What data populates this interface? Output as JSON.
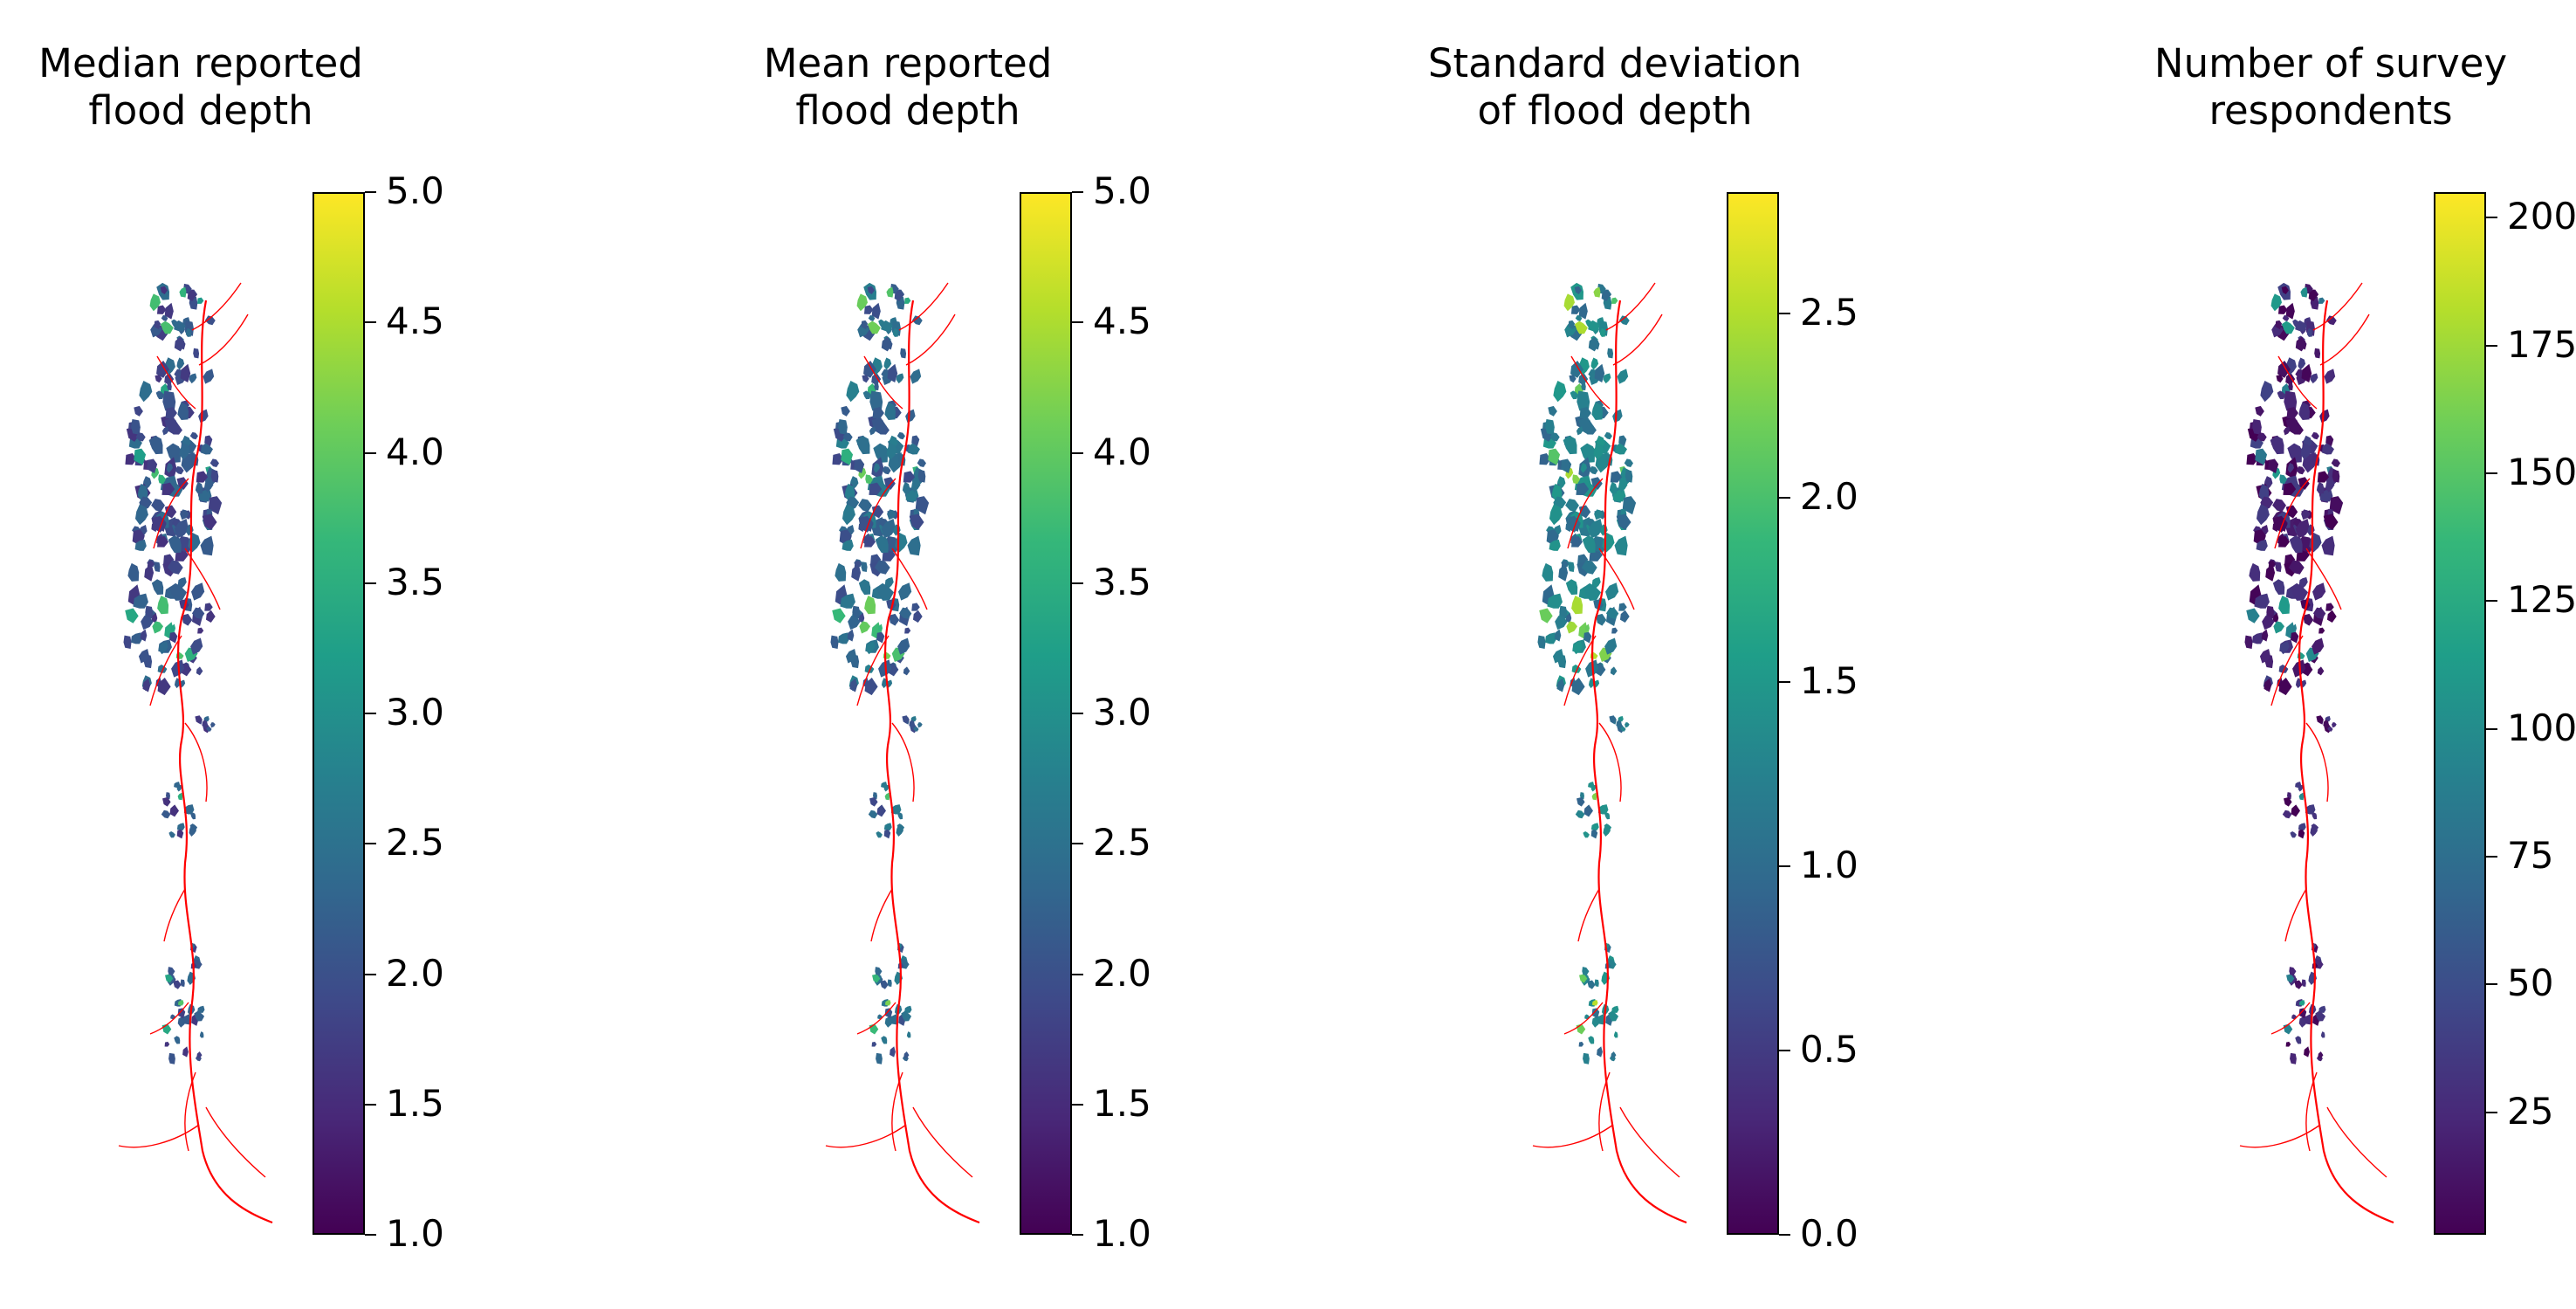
{
  "figure": {
    "river_color": "#ff0000",
    "colormap": "viridis",
    "colormap_stops": [
      "#440154",
      "#482878",
      "#3e4989",
      "#31688e",
      "#26828e",
      "#1f9e89",
      "#35b779",
      "#6ece58",
      "#b5de2b",
      "#fde725"
    ]
  },
  "panels": [
    {
      "title": "Median reported\nflood depth",
      "colorbar": {
        "min": 1.0,
        "max": 5.0,
        "ticks": [
          {
            "value": 1.0,
            "label": "1.0"
          },
          {
            "value": 1.5,
            "label": "1.5"
          },
          {
            "value": 2.0,
            "label": "2.0"
          },
          {
            "value": 2.5,
            "label": "2.5"
          },
          {
            "value": 3.0,
            "label": "3.0"
          },
          {
            "value": 3.5,
            "label": "3.5"
          },
          {
            "value": 4.0,
            "label": "4.0"
          },
          {
            "value": 4.5,
            "label": "4.5"
          },
          {
            "value": 5.0,
            "label": "5.0"
          }
        ]
      },
      "typical_value": 2.0
    },
    {
      "title": "Mean reported\nflood depth",
      "colorbar": {
        "min": 1.0,
        "max": 5.0,
        "ticks": [
          {
            "value": 1.0,
            "label": "1.0"
          },
          {
            "value": 1.5,
            "label": "1.5"
          },
          {
            "value": 2.0,
            "label": "2.0"
          },
          {
            "value": 2.5,
            "label": "2.5"
          },
          {
            "value": 3.0,
            "label": "3.0"
          },
          {
            "value": 3.5,
            "label": "3.5"
          },
          {
            "value": 4.0,
            "label": "4.0"
          },
          {
            "value": 4.5,
            "label": "4.5"
          },
          {
            "value": 5.0,
            "label": "5.0"
          }
        ]
      },
      "typical_value": 2.3
    },
    {
      "title": "Standard deviation\nof flood depth",
      "colorbar": {
        "min": 0.0,
        "max": 2.83,
        "ticks": [
          {
            "value": 0.0,
            "label": "0.0"
          },
          {
            "value": 0.5,
            "label": "0.5"
          },
          {
            "value": 1.0,
            "label": "1.0"
          },
          {
            "value": 1.5,
            "label": "1.5"
          },
          {
            "value": 2.0,
            "label": "2.0"
          },
          {
            "value": 2.5,
            "label": "2.5"
          }
        ]
      },
      "typical_value": 1.2
    },
    {
      "title": "Number of survey\nrespondents",
      "colorbar": {
        "min": 1,
        "max": 205,
        "ticks": [
          {
            "value": 25,
            "label": "25"
          },
          {
            "value": 50,
            "label": "50"
          },
          {
            "value": 75,
            "label": "75"
          },
          {
            "value": 100,
            "label": "100"
          },
          {
            "value": 125,
            "label": "125"
          },
          {
            "value": 150,
            "label": "150"
          },
          {
            "value": 175,
            "label": "175"
          },
          {
            "value": 200,
            "label": "200"
          }
        ]
      },
      "typical_value": 20
    }
  ]
}
